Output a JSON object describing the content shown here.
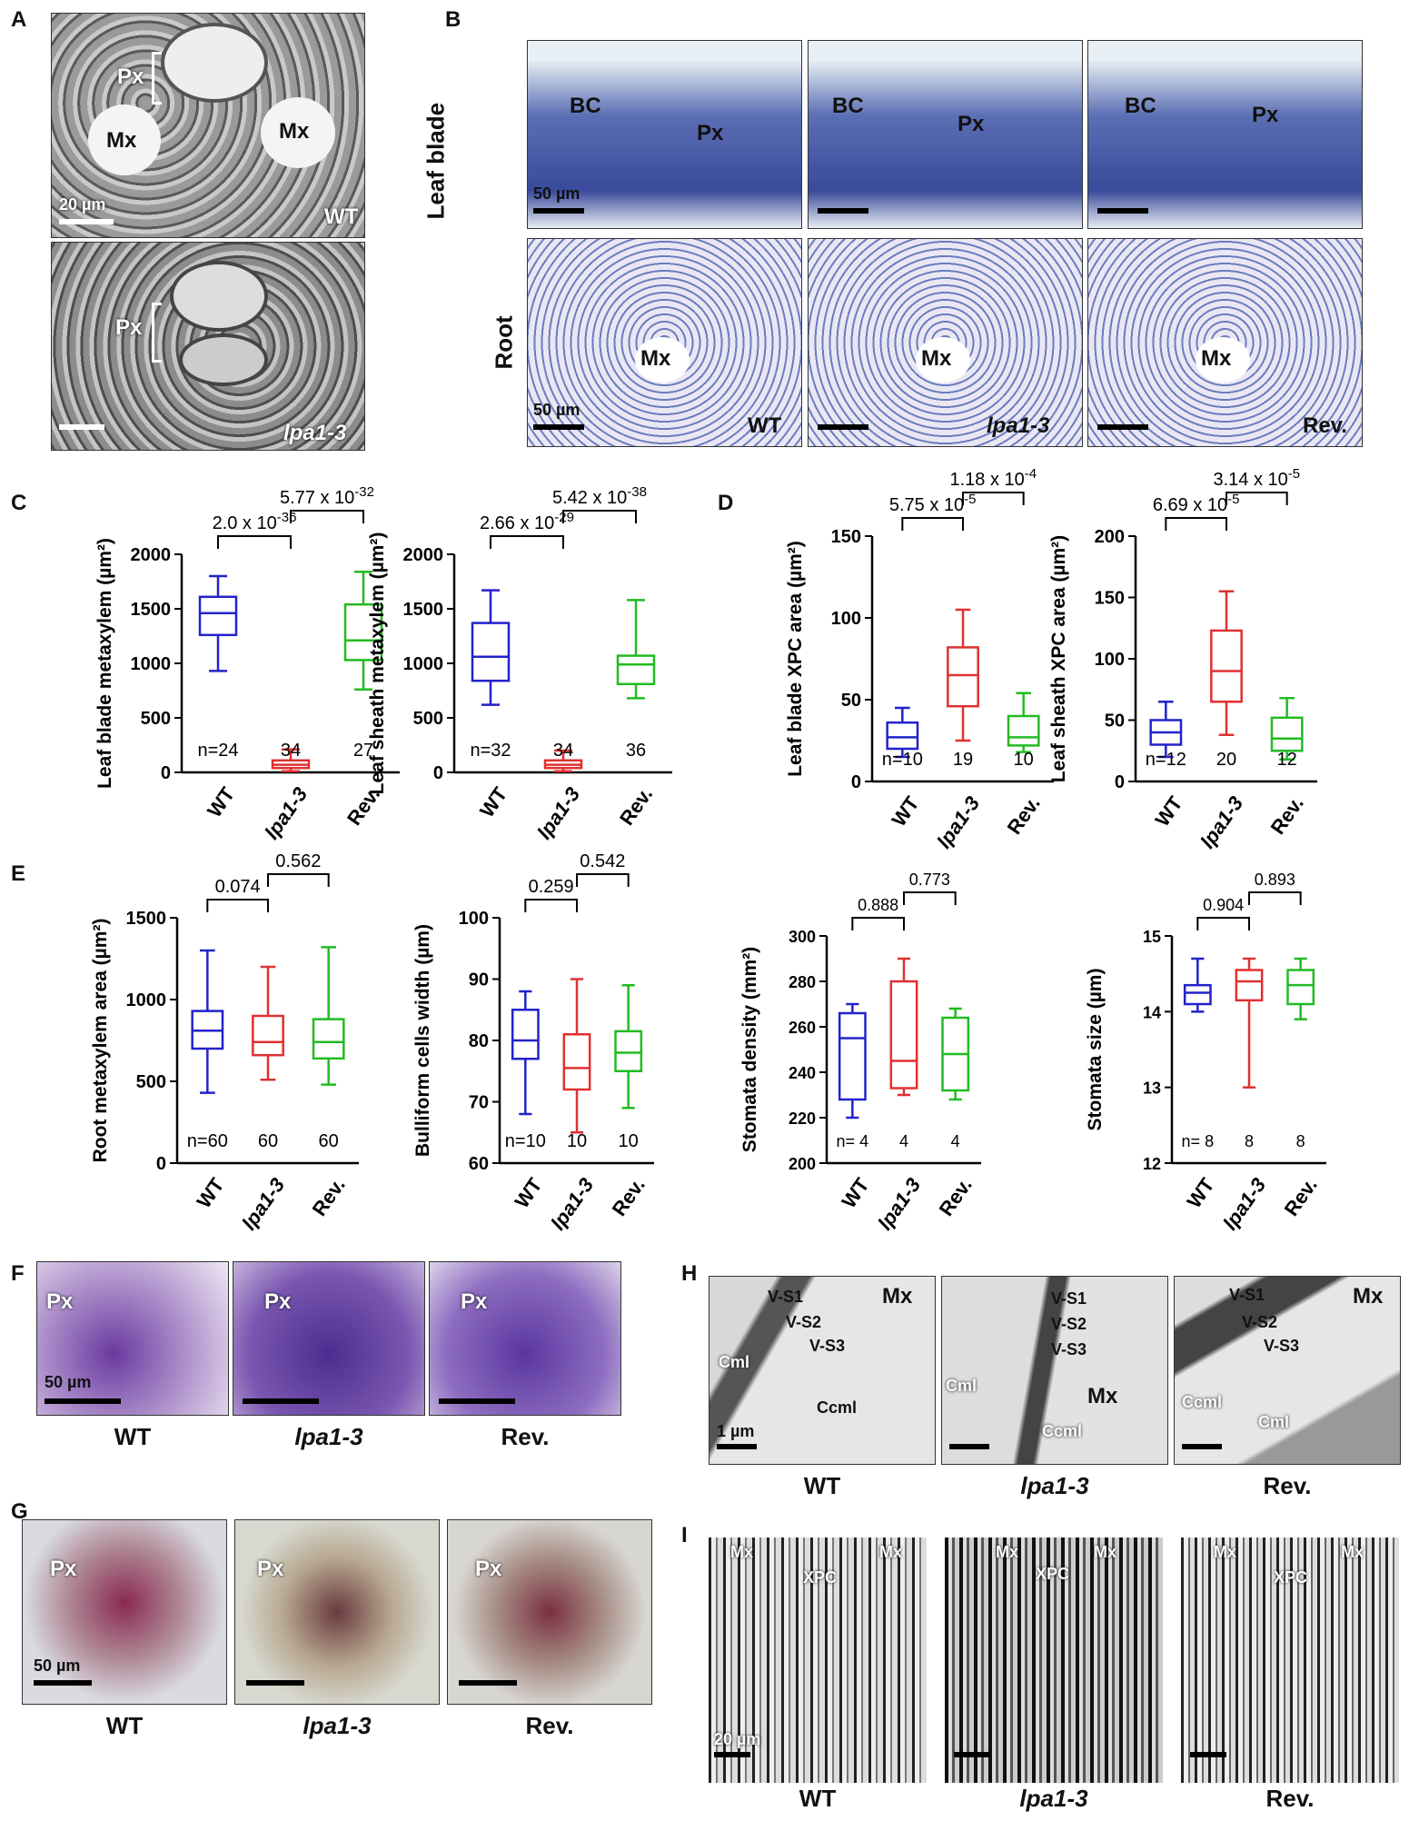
{
  "panels": {
    "A": {
      "label": "A",
      "px": "Px",
      "mx": "Mx",
      "scale": "20 µm",
      "wt": "WT",
      "mut": "lpa1-3"
    },
    "B": {
      "label": "B",
      "row1": "Leaf blade",
      "row2": "Root",
      "bc": "BC",
      "px": "Px",
      "mx": "Mx",
      "scale": "50 µm",
      "wt": "WT",
      "mut": "lpa1-3",
      "rev": "Rev."
    },
    "F": {
      "label": "F",
      "px": "Px",
      "scale": "50 µm",
      "caps": [
        "WT",
        "lpa1-3",
        "Rev."
      ]
    },
    "G": {
      "label": "G",
      "px": "Px",
      "scale": "50 µm",
      "caps": [
        "WT",
        "lpa1-3",
        "Rev."
      ]
    },
    "H": {
      "label": "H",
      "mx": "Mx",
      "vs1": "V-S1",
      "vs2": "V-S2",
      "vs3": "V-S3",
      "cml": "Cml",
      "ccml": "Ccml",
      "scale": "1 µm",
      "caps": [
        "WT",
        "lpa1-3",
        "Rev."
      ]
    },
    "I": {
      "label": "I",
      "mx": "Mx",
      "xpc": "XPC",
      "scale": "20 µm",
      "caps": [
        "WT",
        "lpa1-3",
        "Rev."
      ]
    },
    "C": {
      "label": "C"
    },
    "D": {
      "label": "D"
    },
    "E": {
      "label": "E"
    }
  },
  "chart_data": [
    {
      "id": "c1",
      "type": "box",
      "ylabel": "Leaf blade metaxylem (µm²)",
      "categories": [
        "WT",
        "lpa1-3",
        "Rev."
      ],
      "ylim": [
        0,
        2000
      ],
      "yticks": [
        0,
        500,
        1000,
        1500,
        2000
      ],
      "boxes": [
        {
          "min": 930,
          "q1": 1260,
          "median": 1460,
          "q3": 1610,
          "max": 1800,
          "color": "#2222cc"
        },
        {
          "min": 10,
          "q1": 40,
          "median": 70,
          "q3": 110,
          "max": 210,
          "color": "#e03030"
        },
        {
          "min": 760,
          "q1": 1030,
          "median": 1210,
          "q3": 1540,
          "max": 1840,
          "color": "#22bb22"
        }
      ],
      "n": [
        "n=24",
        "34",
        "27"
      ],
      "comparisons": [
        {
          "from": 0,
          "to": 1,
          "text": "2.0 x 10",
          "exp": "-36"
        },
        {
          "from": 1,
          "to": 2,
          "text": "5.77 x 10",
          "exp": "-32"
        }
      ]
    },
    {
      "id": "c2",
      "type": "box",
      "ylabel": "Leaf sheath metaxylem (µm²)",
      "categories": [
        "WT",
        "lpa1-3",
        "Rev."
      ],
      "ylim": [
        0,
        2000
      ],
      "yticks": [
        0,
        500,
        1000,
        1500,
        2000
      ],
      "boxes": [
        {
          "min": 620,
          "q1": 840,
          "median": 1060,
          "q3": 1370,
          "max": 1670,
          "color": "#2222cc"
        },
        {
          "min": 10,
          "q1": 40,
          "median": 70,
          "q3": 110,
          "max": 200,
          "color": "#e03030"
        },
        {
          "min": 680,
          "q1": 810,
          "median": 990,
          "q3": 1070,
          "max": 1580,
          "color": "#22bb22"
        }
      ],
      "n": [
        "n=32",
        "34",
        "36"
      ],
      "comparisons": [
        {
          "from": 0,
          "to": 1,
          "text": "2.66 x 10",
          "exp": "-29"
        },
        {
          "from": 1,
          "to": 2,
          "text": "5.42 x 10",
          "exp": "-38"
        }
      ]
    },
    {
      "id": "c3",
      "type": "box",
      "ylabel": "Leaf blade XPC area  (µm²)",
      "categories": [
        "WT",
        "lpa1-3",
        "Rev."
      ],
      "ylim": [
        0,
        150
      ],
      "yticks": [
        0,
        50,
        100,
        150
      ],
      "boxes": [
        {
          "min": 15,
          "q1": 20,
          "median": 27,
          "q3": 36,
          "max": 45,
          "color": "#2222cc"
        },
        {
          "min": 25,
          "q1": 46,
          "median": 65,
          "q3": 82,
          "max": 105,
          "color": "#e03030"
        },
        {
          "min": 18,
          "q1": 22,
          "median": 27,
          "q3": 40,
          "max": 54,
          "color": "#22bb22"
        }
      ],
      "n": [
        "n=10",
        "19",
        "10"
      ],
      "comparisons": [
        {
          "from": 0,
          "to": 1,
          "text": "5.75 x 10",
          "exp": "-5"
        },
        {
          "from": 1,
          "to": 2,
          "text": "1.18 x 10",
          "exp": "-4"
        }
      ]
    },
    {
      "id": "c4",
      "type": "box",
      "ylabel": "Leaf sheath XPC area (µm²)",
      "categories": [
        "WT",
        "lpa1-3",
        "Rev."
      ],
      "ylim": [
        0,
        200
      ],
      "yticks": [
        0,
        50,
        100,
        150,
        200
      ],
      "boxes": [
        {
          "min": 20,
          "q1": 30,
          "median": 40,
          "q3": 50,
          "max": 65,
          "color": "#2222cc"
        },
        {
          "min": 38,
          "q1": 65,
          "median": 90,
          "q3": 123,
          "max": 155,
          "color": "#e03030"
        },
        {
          "min": 18,
          "q1": 25,
          "median": 35,
          "q3": 52,
          "max": 68,
          "color": "#22bb22"
        }
      ],
      "n": [
        "n=12",
        "20",
        "12"
      ],
      "comparisons": [
        {
          "from": 0,
          "to": 1,
          "text": "6.69 x 10",
          "exp": "-5"
        },
        {
          "from": 1,
          "to": 2,
          "text": "3.14 x 10",
          "exp": "-5"
        }
      ]
    },
    {
      "id": "e1",
      "type": "box",
      "ylabel": "Root metaxylem area (µm²)",
      "categories": [
        "WT",
        "lpa1-3",
        "Rev."
      ],
      "ylim": [
        0,
        1500
      ],
      "yticks": [
        0,
        500,
        1000,
        1500
      ],
      "boxes": [
        {
          "min": 430,
          "q1": 700,
          "median": 810,
          "q3": 930,
          "max": 1300,
          "color": "#2222cc"
        },
        {
          "min": 510,
          "q1": 660,
          "median": 740,
          "q3": 900,
          "max": 1200,
          "color": "#e03030"
        },
        {
          "min": 480,
          "q1": 640,
          "median": 740,
          "q3": 880,
          "max": 1320,
          "color": "#22bb22"
        }
      ],
      "n": [
        "n=60",
        "60",
        "60"
      ],
      "comparisons": [
        {
          "from": 0,
          "to": 1,
          "text": "0.074"
        },
        {
          "from": 1,
          "to": 2,
          "text": "0.562"
        }
      ]
    },
    {
      "id": "e2",
      "type": "box",
      "ylabel": "Bulliform cells width (µm)",
      "categories": [
        "WT",
        "lpa1-3",
        "Rev."
      ],
      "ylim": [
        60,
        100
      ],
      "yticks": [
        60,
        70,
        80,
        90,
        100
      ],
      "boxes": [
        {
          "min": 68,
          "q1": 77,
          "median": 80,
          "q3": 85,
          "max": 88,
          "color": "#2222cc"
        },
        {
          "min": 65,
          "q1": 72,
          "median": 75.5,
          "q3": 81,
          "max": 90,
          "color": "#e03030"
        },
        {
          "min": 69,
          "q1": 75,
          "median": 78,
          "q3": 81.5,
          "max": 89,
          "color": "#22bb22"
        }
      ],
      "n": [
        "n=10",
        "10",
        "10"
      ],
      "comparisons": [
        {
          "from": 0,
          "to": 1,
          "text": "0.259"
        },
        {
          "from": 1,
          "to": 2,
          "text": "0.542"
        }
      ]
    },
    {
      "id": "e3",
      "type": "box",
      "ylabel": "Stomata density (mm²)",
      "categories": [
        "WT",
        "lpa1-3",
        "Rev."
      ],
      "ylim": [
        200,
        300
      ],
      "yticks": [
        200,
        220,
        240,
        260,
        280,
        300
      ],
      "boxes": [
        {
          "min": 220,
          "q1": 228,
          "median": 255,
          "q3": 266,
          "max": 270,
          "color": "#2222cc"
        },
        {
          "min": 230,
          "q1": 233,
          "median": 245,
          "q3": 280,
          "max": 290,
          "color": "#e03030"
        },
        {
          "min": 228,
          "q1": 232,
          "median": 248,
          "q3": 264,
          "max": 268,
          "color": "#22bb22"
        }
      ],
      "n": [
        "n= 4",
        "4",
        "4"
      ],
      "comparisons": [
        {
          "from": 0,
          "to": 1,
          "text": "0.888"
        },
        {
          "from": 1,
          "to": 2,
          "text": "0.773"
        }
      ]
    },
    {
      "id": "e4",
      "type": "box",
      "ylabel": "Stomata size (µm)",
      "categories": [
        "WT",
        "lpa1-3",
        "Rev."
      ],
      "ylim": [
        12,
        15
      ],
      "yticks": [
        12,
        13,
        14,
        15
      ],
      "boxes": [
        {
          "min": 14.0,
          "q1": 14.1,
          "median": 14.25,
          "q3": 14.35,
          "max": 14.7,
          "color": "#2222cc"
        },
        {
          "min": 13.0,
          "q1": 14.15,
          "median": 14.4,
          "q3": 14.55,
          "max": 14.7,
          "color": "#e03030"
        },
        {
          "min": 13.9,
          "q1": 14.1,
          "median": 14.35,
          "q3": 14.55,
          "max": 14.7,
          "color": "#22bb22"
        }
      ],
      "n": [
        "n= 8",
        "8",
        "8"
      ],
      "comparisons": [
        {
          "from": 0,
          "to": 1,
          "text": "0.904"
        },
        {
          "from": 1,
          "to": 2,
          "text": "0.893"
        }
      ]
    }
  ]
}
